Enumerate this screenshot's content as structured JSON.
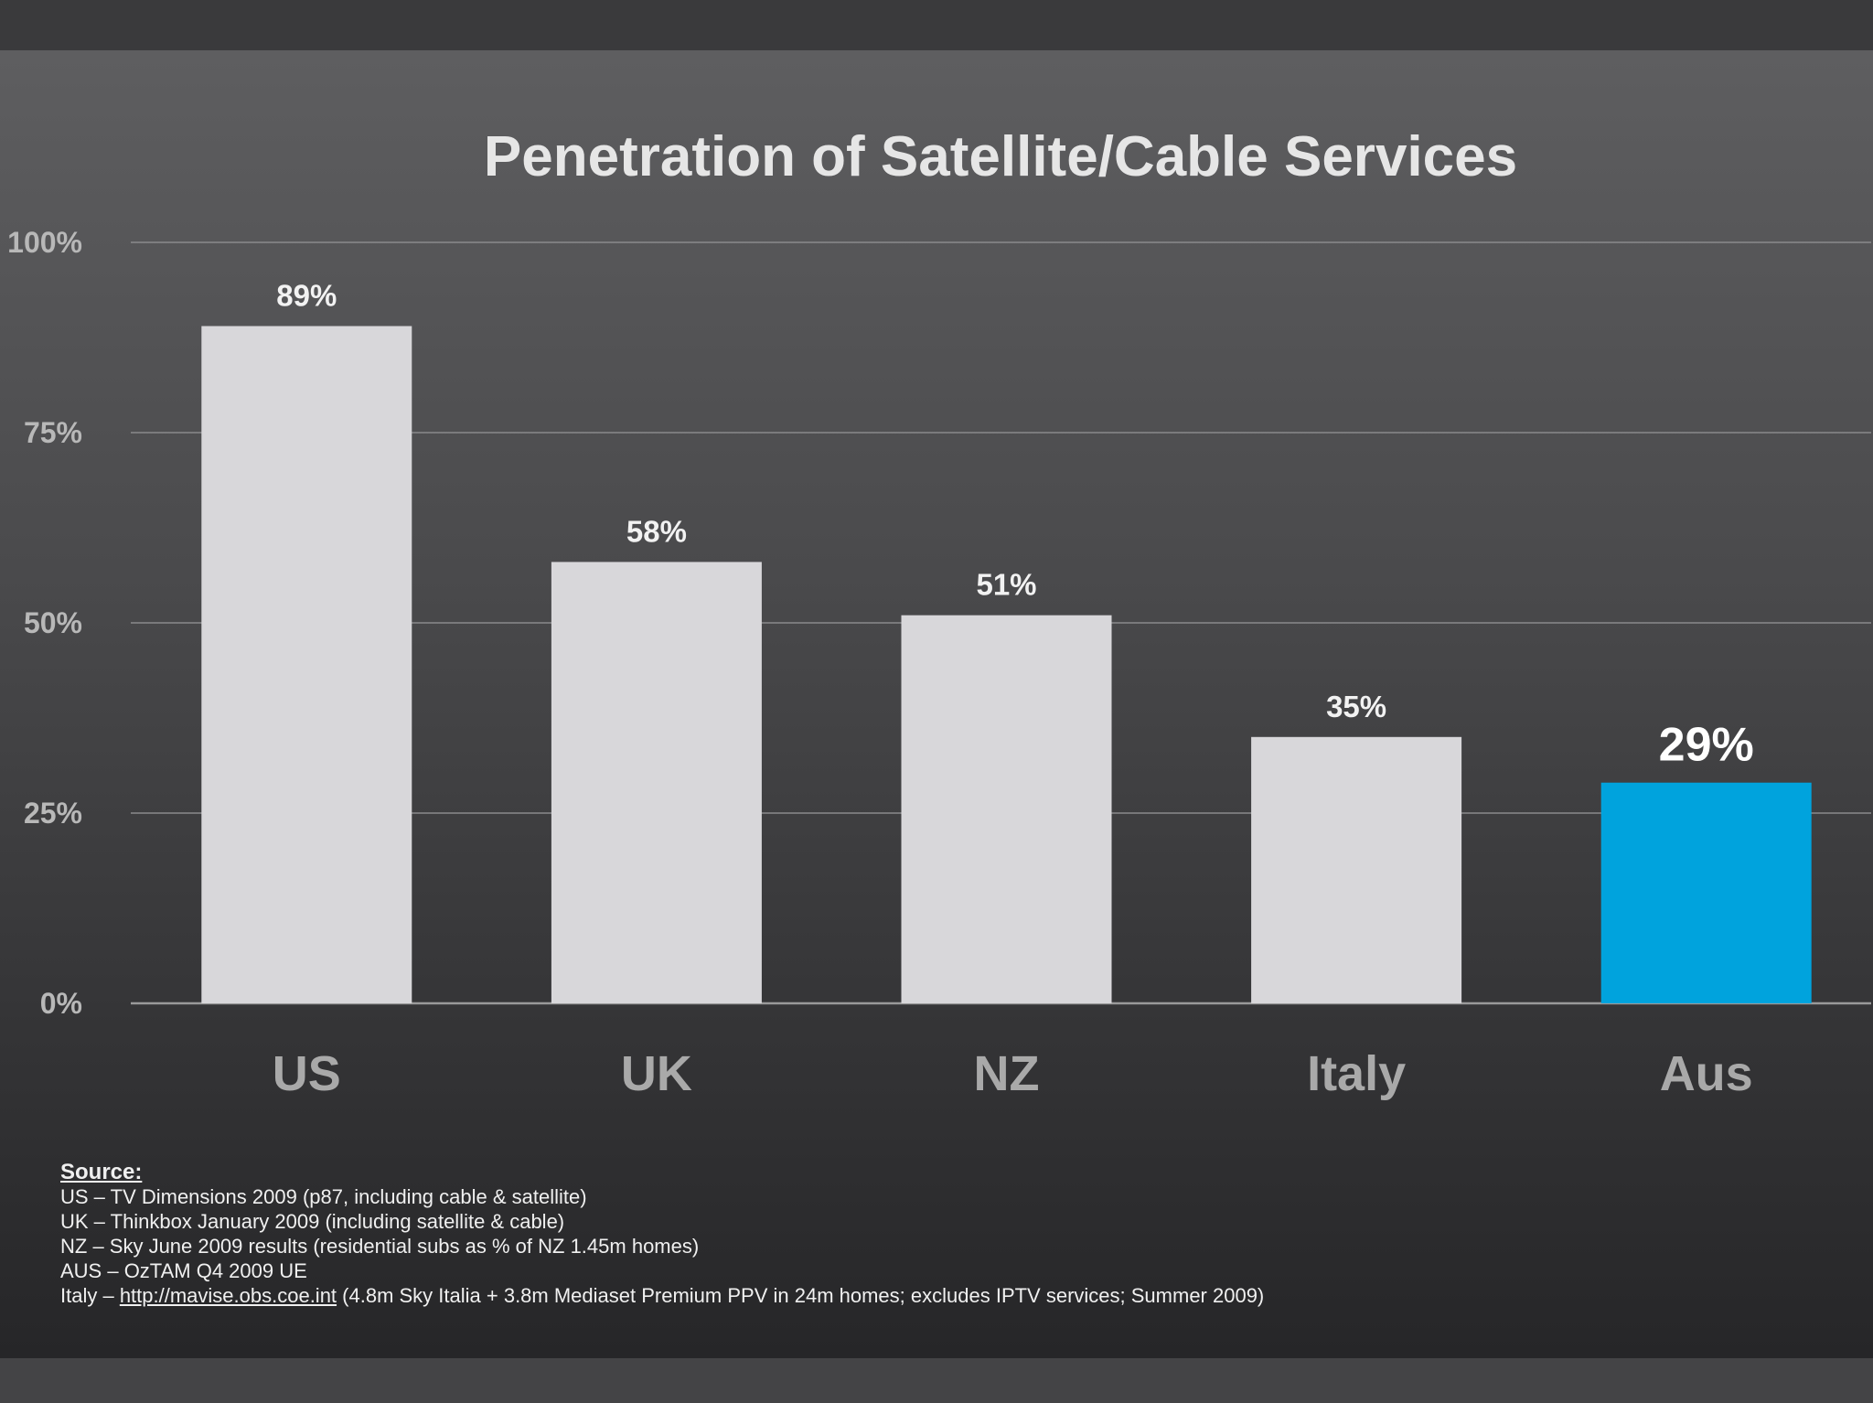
{
  "chart_data": {
    "type": "bar",
    "title": "Penetration of Satellite/Cable Services",
    "categories": [
      "US",
      "UK",
      "NZ",
      "Italy",
      "Aus"
    ],
    "values": [
      89,
      58,
      51,
      35,
      29
    ],
    "data_labels": [
      "89%",
      "58%",
      "51%",
      "35%",
      "29%"
    ],
    "highlight_index": 4,
    "ylim": [
      0,
      100
    ],
    "yticks": [
      0,
      25,
      50,
      75,
      100
    ],
    "ytick_labels": [
      "0%",
      "25%",
      "50%",
      "75%",
      "100%"
    ],
    "grid": true,
    "colors": {
      "bar": "#d8d7da",
      "highlight": "#00a3dd"
    }
  },
  "source": {
    "title": "Source:",
    "lines": [
      {
        "text": "US – TV Dimensions 2009 (p87, including cable & satellite)"
      },
      {
        "text": "UK – Thinkbox January 2009 (including satellite & cable)"
      },
      {
        "text": "NZ – Sky June 2009 results (residential subs as % of NZ 1.45m homes)"
      },
      {
        "text": "AUS – OzTAM Q4 2009 UE"
      },
      {
        "prefix": "Italy – ",
        "link": "http://mavise.obs.coe.int",
        "text": " (4.8m Sky Italia + 3.8m Mediaset Premium PPV in 24m homes; excludes IPTV services; Summer 2009)"
      }
    ]
  }
}
